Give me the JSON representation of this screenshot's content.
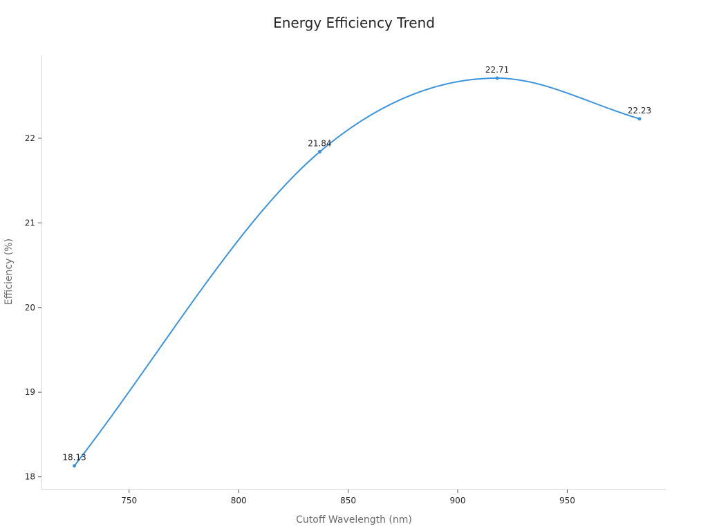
{
  "chart_data": {
    "type": "line",
    "title": "Energy Efficiency Trend",
    "xlabel": "Cutoff Wavelength (nm)",
    "ylabel": "Efficiency (%)",
    "x_ticks": [
      750,
      800,
      850,
      900,
      950
    ],
    "y_ticks": [
      18,
      19,
      20,
      21,
      22
    ],
    "xlim": [
      710,
      995
    ],
    "ylim": [
      17.85,
      22.98
    ],
    "grid": false,
    "smooth": true,
    "series": [
      {
        "color": "#3b93dd",
        "x": [
          725,
          837,
          918,
          983
        ],
        "values": [
          18.13,
          21.84,
          22.71,
          22.23
        ],
        "labels": [
          "18.13",
          "21.84",
          "22.71",
          "22.23"
        ]
      }
    ]
  }
}
